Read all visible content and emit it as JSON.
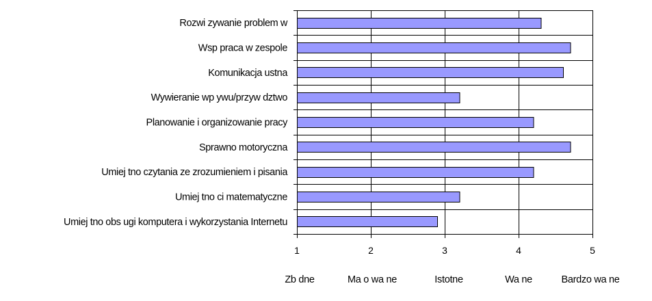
{
  "chart_data": {
    "type": "bar",
    "orientation": "horizontal",
    "categories": [
      "Rozwi zywanie problem w",
      "Wsp praca w zespole",
      "Komunikacja ustna",
      "Wywieranie wp ywu/przyw dztwo",
      "Planowanie i organizowanie pracy",
      "Sprawno motoryczna",
      "Umiej tno czytania ze zrozumieniem i pisania",
      "Umiej tno ci matematyczne",
      "Umiej tno obs ugi komputera i wykorzystania Internetu"
    ],
    "values": [
      4.3,
      4.7,
      4.6,
      3.2,
      4.2,
      4.7,
      4.2,
      3.2,
      2.9
    ],
    "xlim": [
      1,
      5
    ],
    "xticks": [
      "1",
      "2",
      "3",
      "4",
      "5"
    ],
    "scale_labels": [
      "Zb dne",
      "Ma o wa ne",
      "Istotne",
      "Wa ne",
      "Bardzo wa ne"
    ],
    "bar_color": "#9999ff",
    "grid": "vertical",
    "title": "",
    "xlabel": "",
    "ylabel": ""
  }
}
